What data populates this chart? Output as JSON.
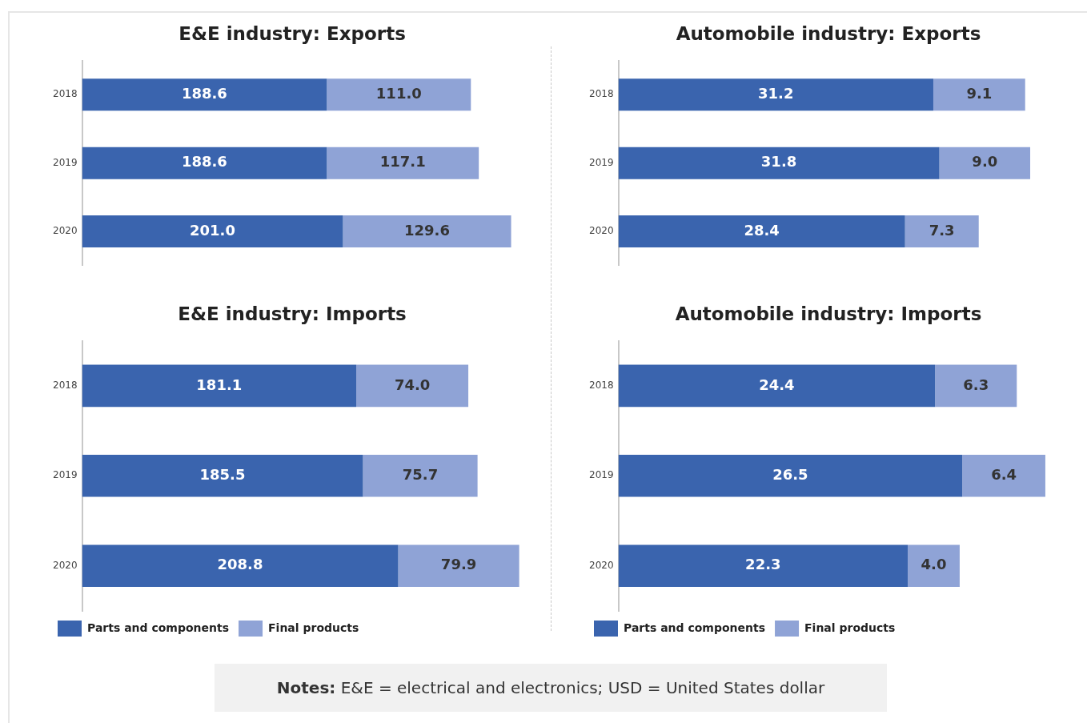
{
  "chart_data": [
    {
      "type": "bar",
      "title": "E&E industry: Exports",
      "orientation": "horizontal",
      "stacked": true,
      "categories": [
        "2018",
        "2019",
        "2020"
      ],
      "series": [
        {
          "color": "#3a64ae",
          "values": [
            188.6,
            188.6,
            201.0
          ],
          "value_labels": [
            "188.6",
            "188.6",
            "201.0"
          ]
        },
        {
          "color": "#8fa3d6",
          "values": [
            111.0,
            117.1,
            129.6
          ],
          "value_labels": [
            "111.0",
            "117.1",
            "129.6"
          ]
        }
      ],
      "tick_labels": "y"
    },
    {
      "type": "bar",
      "title": "Automobile industry: Exports",
      "orientation": "horizontal",
      "stacked": true,
      "categories": [
        "2018",
        "2019",
        "2020"
      ],
      "series": [
        {
          "color": "#3a64ae",
          "values": [
            31.2,
            31.8,
            28.4
          ],
          "value_labels": [
            "31.2",
            "31.8",
            "28.4"
          ]
        },
        {
          "color": "#8fa3d6",
          "values": [
            9.1,
            9.0,
            7.3
          ],
          "value_labels": [
            "9.1",
            "9.0",
            "7.3"
          ]
        }
      ],
      "tick_labels": "y"
    },
    {
      "type": "bar",
      "title": "E&E industry: Imports",
      "orientation": "horizontal",
      "stacked": true,
      "categories": [
        "2018",
        "2019",
        "2020"
      ],
      "series": [
        {
          "name": "Parts and components",
          "color": "#3a64ae",
          "values": [
            181.1,
            185.5,
            208.8
          ],
          "value_labels": [
            "181.1",
            "185.5",
            "208.8"
          ]
        },
        {
          "name": "Final products",
          "color": "#8fa3d6",
          "values": [
            74.0,
            75.7,
            79.9
          ],
          "value_labels": [
            "74.0",
            "75.7",
            "79.9"
          ]
        }
      ],
      "tick_labels": "y",
      "legend": "bottom"
    },
    {
      "type": "bar",
      "title": "Automobile industry: Imports",
      "orientation": "horizontal",
      "stacked": true,
      "categories": [
        "2018",
        "2019",
        "2020"
      ],
      "series": [
        {
          "name": "Parts and components",
          "color": "#3a64ae",
          "values": [
            24.4,
            26.5,
            22.3
          ],
          "value_labels": [
            "24.4",
            "26.5",
            "22.3"
          ]
        },
        {
          "name": "Final products",
          "color": "#8fa3d6",
          "values": [
            6.3,
            6.4,
            4.0
          ],
          "value_labels": [
            "6.3",
            "6.4",
            "4.0"
          ]
        }
      ],
      "tick_labels": "y",
      "legend": "bottom",
      "annotations": [
        "Notes: E&E = electrical and electronics; USD = United States dollar"
      ]
    }
  ]
}
